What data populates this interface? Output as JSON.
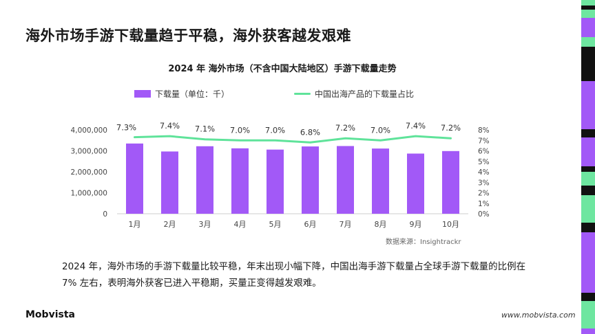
{
  "page": {
    "title": "海外市场手游下载量趋于平稳，海外获客越发艰难",
    "source": "数据来源：Insightrackr",
    "description": "2024 年，海外市场的手游下载量比较平稳，年末出现小幅下降，中国出海手游下载量占全球手游下载量的比例在 7% 左右，表明海外获客已进入平稳期，买量正变得越发艰难。",
    "logo": "Mobvista",
    "website": "www.mobvista.com"
  },
  "colors": {
    "bar": "#a259f7",
    "line": "#5fe39a",
    "stripe_green": "#6ee6a0",
    "stripe_purple": "#a259f7",
    "stripe_black": "#111111"
  },
  "chart_data": {
    "type": "bar",
    "title": "2024 年 海外市场（不含中国大陆地区）手游下载量走势",
    "categories": [
      "1月",
      "2月",
      "3月",
      "4月",
      "5月",
      "6月",
      "7月",
      "8月",
      "9月",
      "10月"
    ],
    "series": [
      {
        "name": "下载量（单位：千）",
        "type": "bar",
        "axis": "left",
        "values": [
          3350000,
          2970000,
          3220000,
          3120000,
          3060000,
          3210000,
          3230000,
          3110000,
          2870000,
          2990000
        ]
      },
      {
        "name": "中国出海产品的下载量占比",
        "type": "line",
        "axis": "right",
        "values": [
          7.3,
          7.4,
          7.1,
          7.0,
          7.0,
          6.8,
          7.2,
          7.0,
          7.4,
          7.2
        ],
        "labels": [
          "7.3%",
          "7.4%",
          "7.1%",
          "7.0%",
          "7.0%",
          "6.8%",
          "7.2%",
          "7.0%",
          "7.4%",
          "7.2%"
        ]
      }
    ],
    "y_left": {
      "range": [
        0,
        4000000
      ],
      "ticks": [
        0,
        1000000,
        2000000,
        3000000,
        4000000
      ],
      "tick_labels": [
        "0",
        "1,000,000",
        "2,000,000",
        "3,000,000",
        "4,000,000"
      ]
    },
    "y_right": {
      "range": [
        0,
        8
      ],
      "ticks": [
        0,
        1,
        2,
        3,
        4,
        5,
        6,
        7,
        8
      ],
      "tick_labels": [
        "0%",
        "1%",
        "2%",
        "3%",
        "4%",
        "5%",
        "6%",
        "7%",
        "8%"
      ]
    },
    "grid": false,
    "legend": "top"
  }
}
